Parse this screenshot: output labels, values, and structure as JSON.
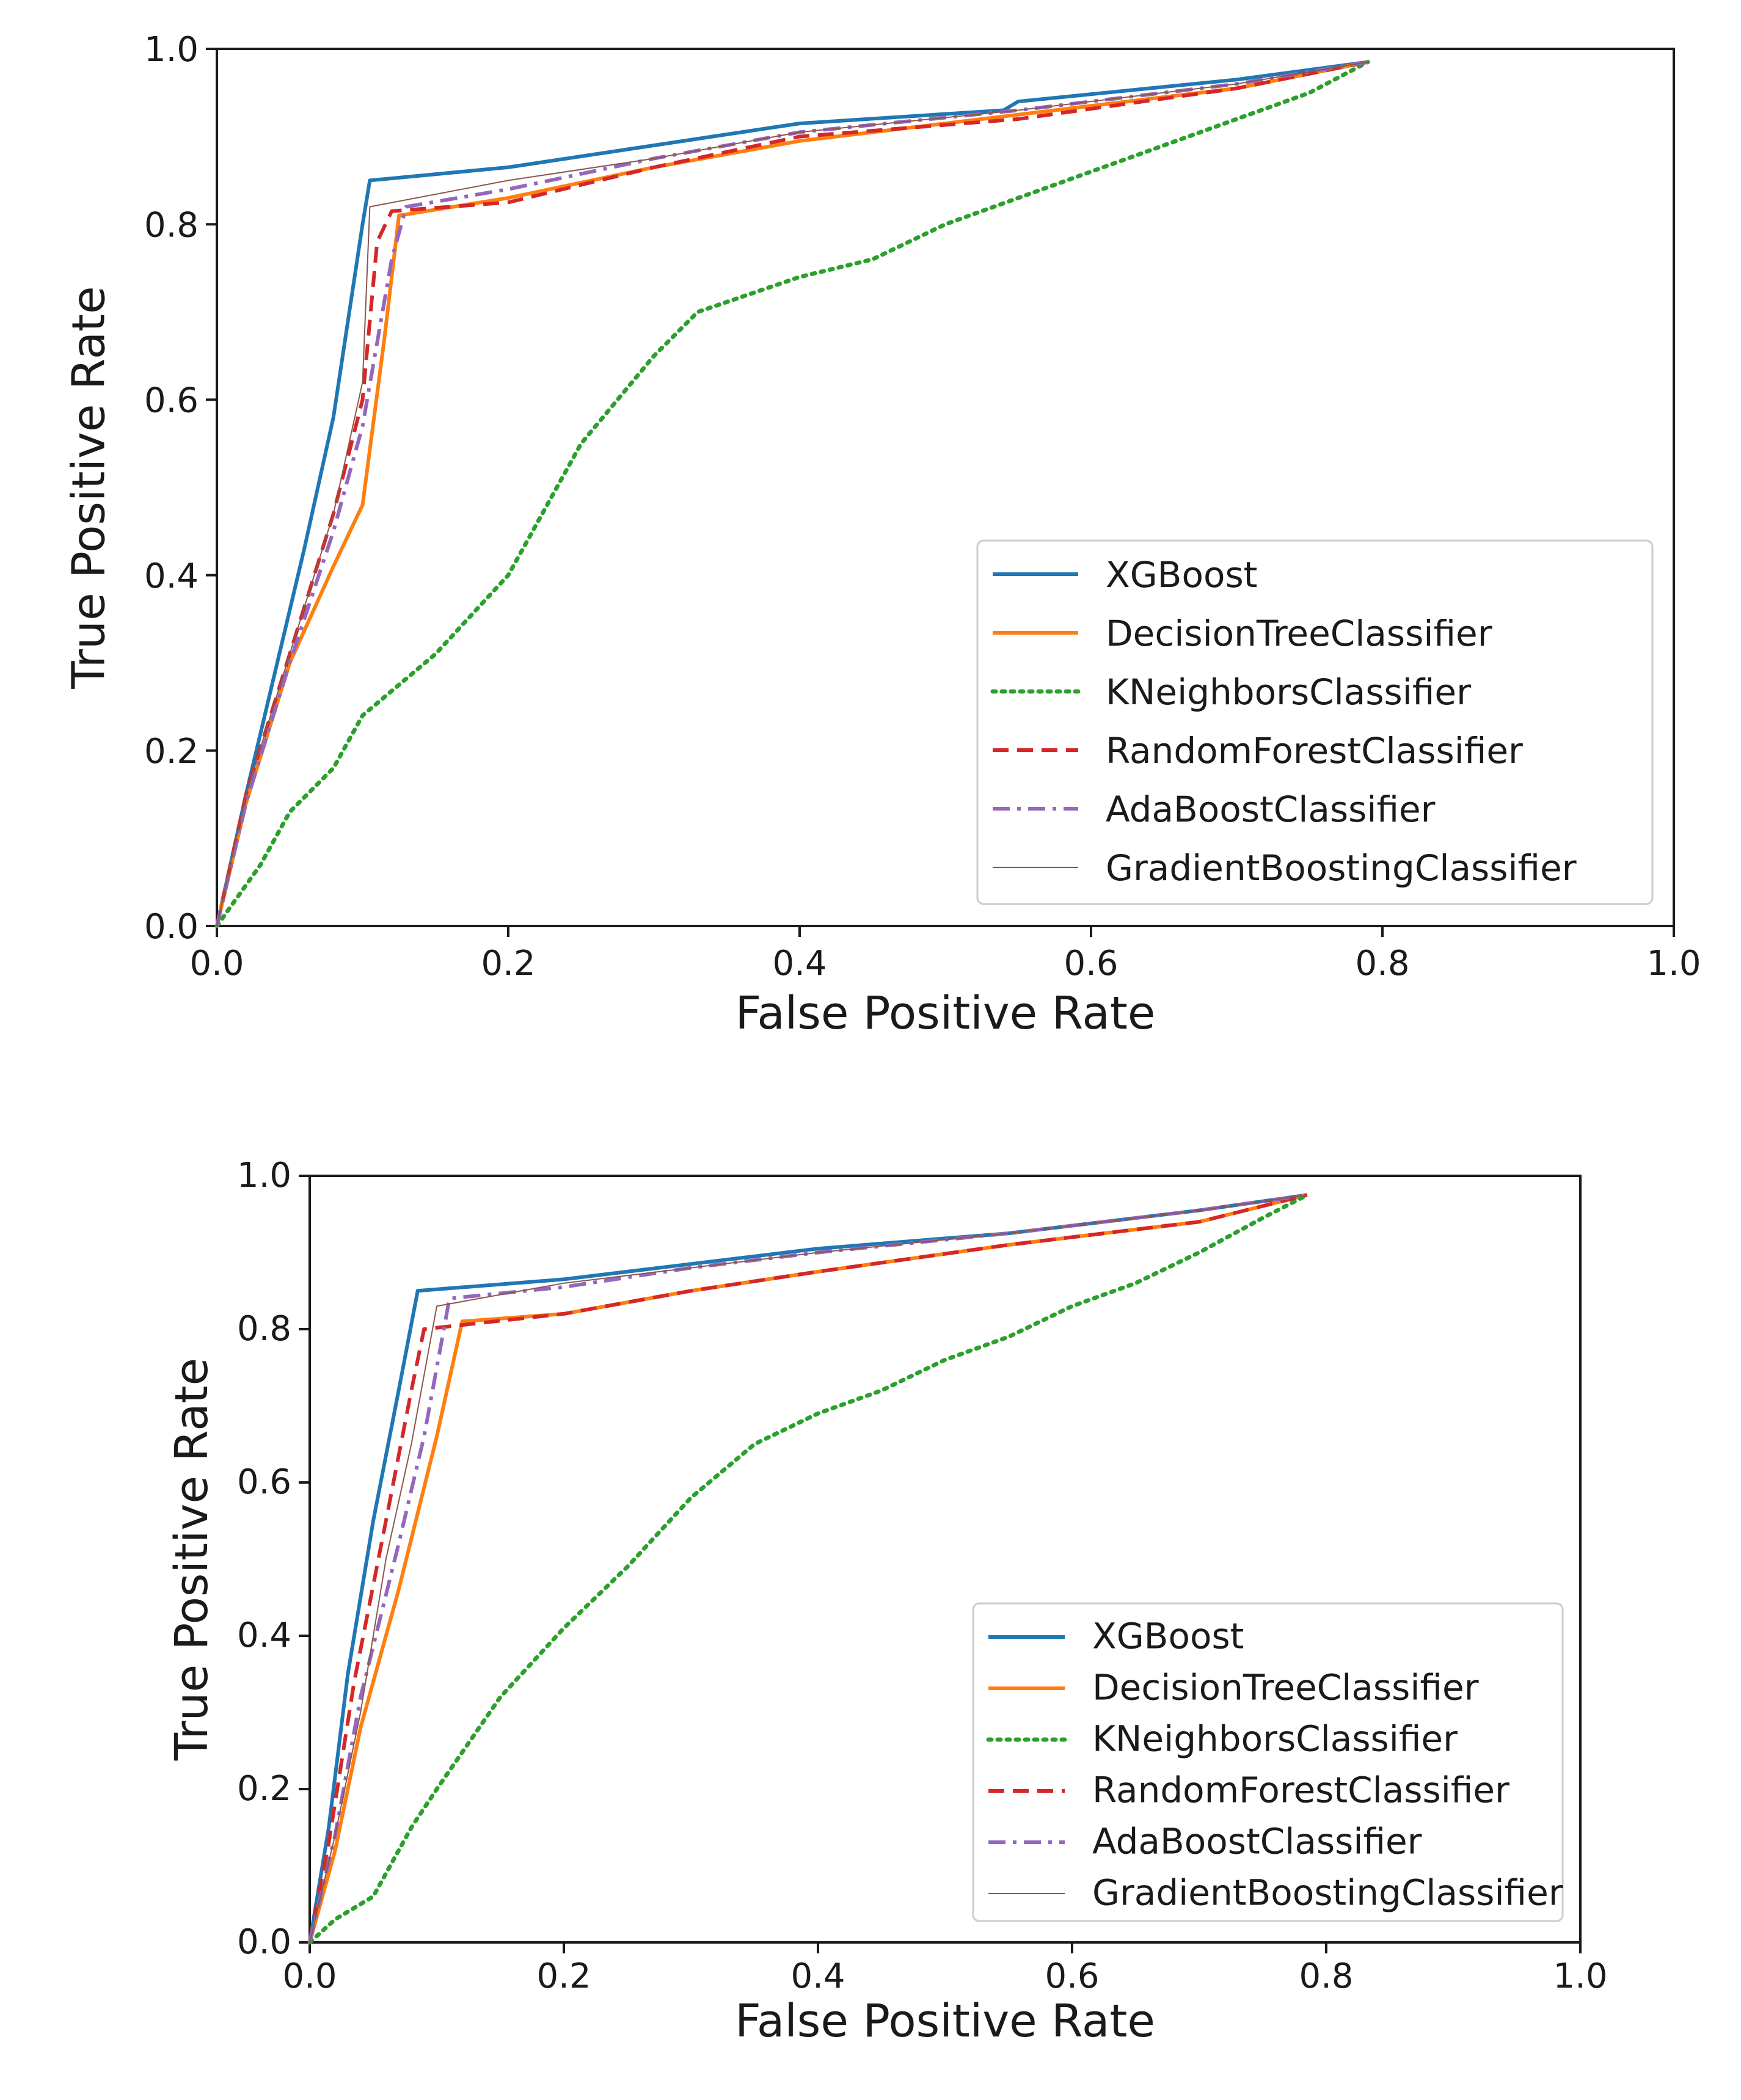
{
  "chart_data": [
    {
      "type": "line",
      "title": "",
      "xlabel": "False Positive Rate",
      "ylabel": "True Positive Rate",
      "xlim": [
        0.0,
        1.0
      ],
      "ylim": [
        0.0,
        1.0
      ],
      "xticks": [
        "0.0",
        "0.2",
        "0.4",
        "0.6",
        "0.8",
        "1.0"
      ],
      "yticks": [
        "0.0",
        "0.2",
        "0.4",
        "0.6",
        "0.8",
        "1.0"
      ],
      "grid": false,
      "legend_position": "lower-right",
      "series": [
        {
          "name": "XGBoost",
          "color": "#1f77b4",
          "dash": "solid",
          "x": [
            0.0,
            0.02,
            0.04,
            0.06,
            0.08,
            0.1,
            0.105,
            0.2,
            0.3,
            0.4,
            0.54,
            0.55,
            0.7,
            0.79
          ],
          "y": [
            0.0,
            0.15,
            0.29,
            0.43,
            0.58,
            0.8,
            0.85,
            0.865,
            0.89,
            0.915,
            0.93,
            0.94,
            0.965,
            0.985
          ]
        },
        {
          "name": "DecisionTreeClassifier",
          "color": "#ff7f0e",
          "dash": "solid",
          "x": [
            0.0,
            0.02,
            0.05,
            0.08,
            0.1,
            0.115,
            0.125,
            0.2,
            0.3,
            0.4,
            0.55,
            0.7,
            0.79
          ],
          "y": [
            0.0,
            0.14,
            0.3,
            0.41,
            0.48,
            0.67,
            0.81,
            0.83,
            0.865,
            0.895,
            0.925,
            0.955,
            0.985
          ]
        },
        {
          "name": "KNeighborsClassifier",
          "color": "#2ca02c",
          "dash": "dotted",
          "x": [
            0.0,
            0.03,
            0.05,
            0.08,
            0.1,
            0.15,
            0.2,
            0.25,
            0.3,
            0.33,
            0.4,
            0.45,
            0.5,
            0.55,
            0.6,
            0.65,
            0.7,
            0.75,
            0.79
          ],
          "y": [
            0.0,
            0.07,
            0.13,
            0.18,
            0.24,
            0.31,
            0.4,
            0.55,
            0.65,
            0.7,
            0.74,
            0.76,
            0.8,
            0.83,
            0.86,
            0.89,
            0.92,
            0.95,
            0.985
          ]
        },
        {
          "name": "RandomForestClassifier",
          "color": "#d62728",
          "dash": "dashed",
          "x": [
            0.0,
            0.02,
            0.05,
            0.08,
            0.1,
            0.11,
            0.12,
            0.2,
            0.3,
            0.4,
            0.55,
            0.7,
            0.79
          ],
          "y": [
            0.0,
            0.15,
            0.31,
            0.47,
            0.6,
            0.78,
            0.815,
            0.825,
            0.865,
            0.9,
            0.92,
            0.955,
            0.985
          ]
        },
        {
          "name": "AdaBoostClassifier",
          "color": "#9467bd",
          "dash": "dashdot",
          "x": [
            0.0,
            0.02,
            0.05,
            0.08,
            0.1,
            0.12,
            0.13,
            0.2,
            0.3,
            0.4,
            0.55,
            0.7,
            0.79
          ],
          "y": [
            0.0,
            0.14,
            0.3,
            0.45,
            0.57,
            0.76,
            0.82,
            0.84,
            0.875,
            0.905,
            0.93,
            0.96,
            0.985
          ]
        },
        {
          "name": "GradientBoostingClassifier",
          "color": "#8c564b",
          "dash": "thin",
          "x": [
            0.0,
            0.02,
            0.05,
            0.08,
            0.1,
            0.105,
            0.2,
            0.3,
            0.4,
            0.55,
            0.7,
            0.79
          ],
          "y": [
            0.0,
            0.15,
            0.31,
            0.47,
            0.62,
            0.82,
            0.85,
            0.875,
            0.905,
            0.93,
            0.96,
            0.985
          ]
        }
      ]
    },
    {
      "type": "line",
      "title": "",
      "xlabel": "False Positive Rate",
      "ylabel": "True Positive Rate",
      "xlim": [
        0.0,
        1.0
      ],
      "ylim": [
        0.0,
        1.0
      ],
      "xticks": [
        "0.0",
        "0.2",
        "0.4",
        "0.6",
        "0.8",
        "1.0"
      ],
      "yticks": [
        "0.0",
        "0.2",
        "0.4",
        "0.6",
        "0.8",
        "1.0"
      ],
      "grid": false,
      "legend_position": "lower-right",
      "series": [
        {
          "name": "XGBoost",
          "color": "#1f77b4",
          "dash": "solid",
          "x": [
            0.0,
            0.015,
            0.03,
            0.05,
            0.07,
            0.085,
            0.2,
            0.3,
            0.4,
            0.55,
            0.7,
            0.785
          ],
          "y": [
            0.0,
            0.15,
            0.35,
            0.55,
            0.72,
            0.85,
            0.865,
            0.885,
            0.905,
            0.925,
            0.955,
            0.975
          ]
        },
        {
          "name": "DecisionTreeClassifier",
          "color": "#ff7f0e",
          "dash": "solid",
          "x": [
            0.0,
            0.02,
            0.04,
            0.07,
            0.1,
            0.12,
            0.2,
            0.3,
            0.4,
            0.55,
            0.7,
            0.785
          ],
          "y": [
            0.0,
            0.12,
            0.28,
            0.46,
            0.66,
            0.81,
            0.82,
            0.85,
            0.875,
            0.91,
            0.94,
            0.975
          ]
        },
        {
          "name": "KNeighborsClassifier",
          "color": "#2ca02c",
          "dash": "dotted",
          "x": [
            0.0,
            0.02,
            0.05,
            0.08,
            0.1,
            0.15,
            0.2,
            0.25,
            0.3,
            0.35,
            0.4,
            0.45,
            0.5,
            0.55,
            0.6,
            0.65,
            0.7,
            0.75,
            0.785
          ],
          "y": [
            0.0,
            0.03,
            0.06,
            0.15,
            0.2,
            0.32,
            0.41,
            0.49,
            0.58,
            0.65,
            0.69,
            0.72,
            0.76,
            0.79,
            0.83,
            0.86,
            0.9,
            0.945,
            0.975
          ]
        },
        {
          "name": "RandomForestClassifier",
          "color": "#d62728",
          "dash": "dashed",
          "x": [
            0.0,
            0.015,
            0.035,
            0.06,
            0.08,
            0.09,
            0.2,
            0.3,
            0.4,
            0.55,
            0.7,
            0.785
          ],
          "y": [
            0.0,
            0.13,
            0.34,
            0.55,
            0.72,
            0.8,
            0.82,
            0.85,
            0.875,
            0.91,
            0.94,
            0.975
          ]
        },
        {
          "name": "AdaBoostClassifier",
          "color": "#9467bd",
          "dash": "dashdot",
          "x": [
            0.0,
            0.02,
            0.04,
            0.07,
            0.09,
            0.11,
            0.2,
            0.3,
            0.4,
            0.55,
            0.7,
            0.785
          ],
          "y": [
            0.0,
            0.14,
            0.32,
            0.52,
            0.66,
            0.84,
            0.855,
            0.88,
            0.9,
            0.925,
            0.955,
            0.975
          ]
        },
        {
          "name": "GradientBoostingClassifier",
          "color": "#8c564b",
          "dash": "thin",
          "x": [
            0.0,
            0.02,
            0.04,
            0.06,
            0.08,
            0.1,
            0.2,
            0.3,
            0.4,
            0.55,
            0.7,
            0.785
          ],
          "y": [
            0.0,
            0.14,
            0.3,
            0.5,
            0.65,
            0.83,
            0.86,
            0.88,
            0.9,
            0.925,
            0.955,
            0.975
          ]
        }
      ]
    }
  ]
}
